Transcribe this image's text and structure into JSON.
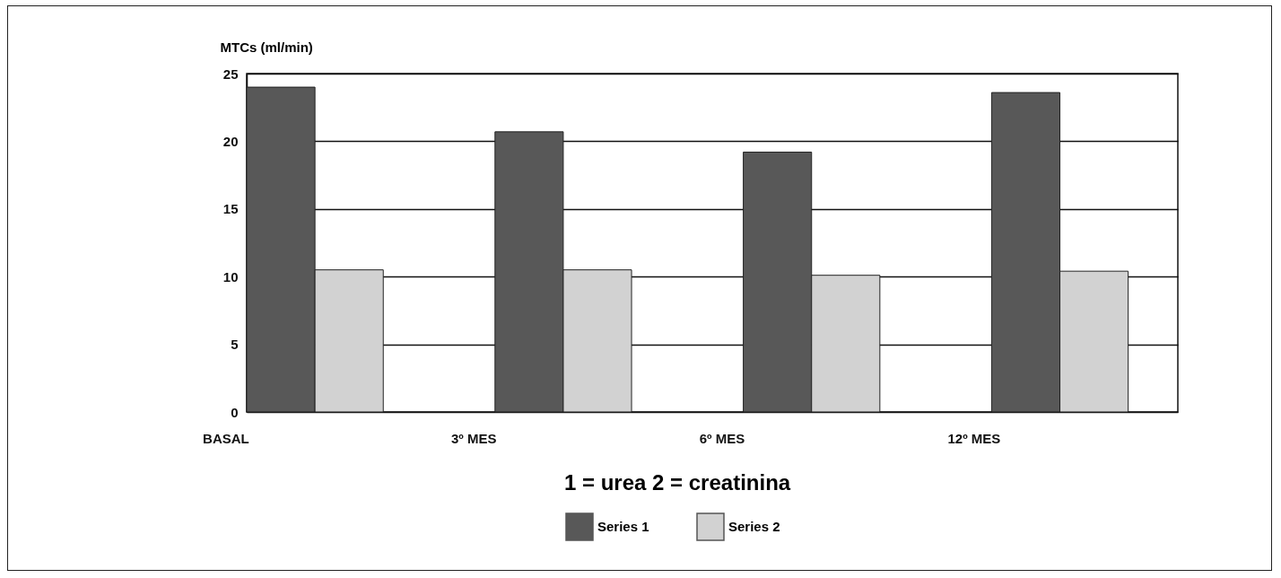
{
  "chart_data": {
    "type": "bar",
    "ylabel": "MTCs (ml/min)",
    "categories": [
      "BASAL",
      "3º MES",
      "6º MES",
      "12º MES"
    ],
    "series": [
      {
        "name": "Series 1",
        "color": "#585858",
        "values": [
          24.0,
          20.7,
          19.2,
          23.6
        ]
      },
      {
        "name": "Series 2",
        "color": "#d2d2d2",
        "values": [
          10.5,
          10.5,
          10.1,
          10.4
        ]
      }
    ],
    "ylim": [
      0,
      25
    ],
    "yticks": [
      0,
      5,
      10,
      15,
      20,
      25
    ],
    "grid": "y",
    "legend": "bottom",
    "annotations": [
      "1 = urea    2 = creatinina"
    ]
  }
}
